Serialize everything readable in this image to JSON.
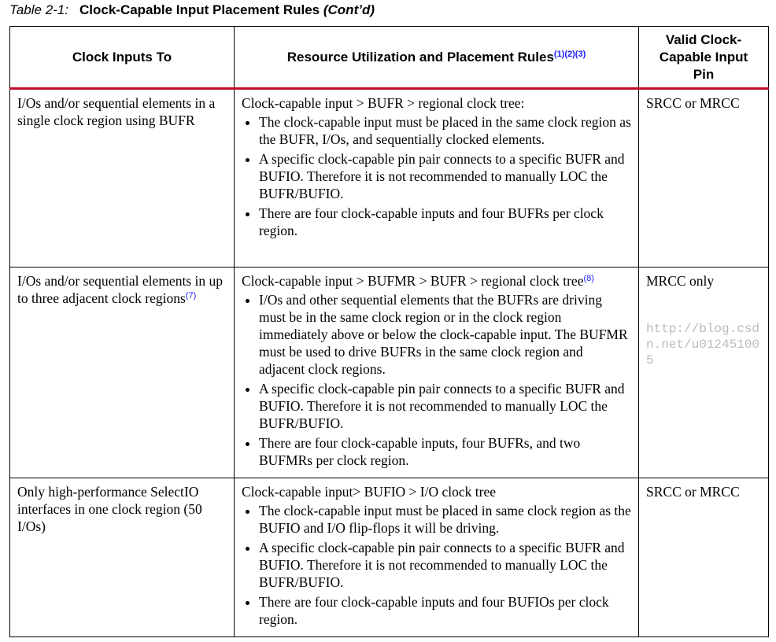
{
  "caption": {
    "label": "Table 2-1:",
    "title": "Clock-Capable Input Placement Rules",
    "cont": "(Cont’d)"
  },
  "headers": [
    {
      "text": "Clock Inputs To",
      "notes": ""
    },
    {
      "text": "Resource Utilization and Placement Rules",
      "notes": "(1)(2)(3)"
    },
    {
      "text": "Valid Clock-Capable Input Pin",
      "notes": ""
    }
  ],
  "rows": [
    {
      "input": "I/Os and/or sequential elements in a single clock region using BUFR",
      "input_note": "",
      "rule_title": "Clock-capable input > BUFR > regional clock tree:",
      "rule_note": "",
      "bullets": [
        "The clock-capable input must be placed in the same clock region as the BUFR, I/Os, and sequentially clocked elements.",
        "A specific clock-capable pin pair connects to a specific BUFR and BUFIO. Therefore it is not recommended to manually LOC the BUFR/BUFIO.",
        "There are four clock-capable inputs and four BUFRs per clock region."
      ],
      "pin": "SRCC or MRCC"
    },
    {
      "input": "I/Os and/or sequential elements in up to three adjacent clock regions",
      "input_note": "(7)",
      "rule_title": "Clock-capable input > BUFMR > BUFR > regional clock tree",
      "rule_note": "(8)",
      "bullets": [
        "I/Os and other sequential elements that the BUFRs are driving must be in the same clock region or in the clock region immediately above or below the clock-capable input. The BUFMR must be used to drive BUFRs in the same clock region and adjacent clock regions.",
        "A specific clock-capable pin pair connects to a specific BUFR and BUFIO. Therefore it is not recommended to manually LOC the BUFR/BUFIO.",
        "There are four clock-capable inputs, four BUFRs, and two BUFMRs per clock region."
      ],
      "pin": "MRCC only"
    },
    {
      "input": "Only high-performance SelectIO interfaces in one clock region (50 I/Os)",
      "input_note": "",
      "rule_title": "Clock-capable input> BUFIO > I/O clock tree",
      "rule_note": "",
      "bullets": [
        "The clock-capable input must be placed in same clock region as the BUFIO and I/O flip-flops it will be driving.",
        "A specific clock-capable pin pair connects to a specific BUFR and BUFIO. Therefore it is not recommended to manually LOC the BUFR/BUFIO.",
        "There are four clock-capable inputs and four BUFIOs per clock region."
      ],
      "pin": "SRCC or MRCC"
    }
  ],
  "watermark": "http://blog.csdn.net/u012451005",
  "colors": {
    "header_rule": "#c00d2a",
    "footnote_ref": "#1a1aff"
  }
}
